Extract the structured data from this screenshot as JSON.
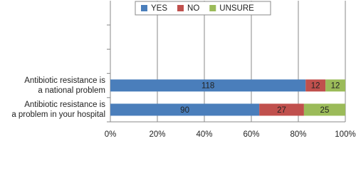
{
  "chart_data": {
    "type": "stacked_bar_100",
    "categories": [
      null,
      null,
      null,
      "Antibiotic resistance is\na national problem",
      "Antibiotic resistance is\na problem in your hospital"
    ],
    "series": [
      {
        "name": "YES",
        "color": "#4a7ebb",
        "values": [
          null,
          null,
          null,
          118,
          90
        ]
      },
      {
        "name": "NO",
        "color": "#c0504d",
        "values": [
          null,
          null,
          null,
          12,
          27
        ]
      },
      {
        "name": "UNSURE",
        "color": "#9bbb59",
        "values": [
          null,
          null,
          null,
          12,
          25
        ]
      }
    ],
    "xlim": [
      0,
      100
    ],
    "xticks": [
      {
        "value": 0,
        "label": "0%"
      },
      {
        "value": 20,
        "label": "20%"
      },
      {
        "value": 40,
        "label": "40%"
      },
      {
        "value": 60,
        "label": "60%"
      },
      {
        "value": 80,
        "label": "80%"
      },
      {
        "value": 100,
        "label": "100%"
      }
    ],
    "grid": true,
    "legend": "top"
  }
}
